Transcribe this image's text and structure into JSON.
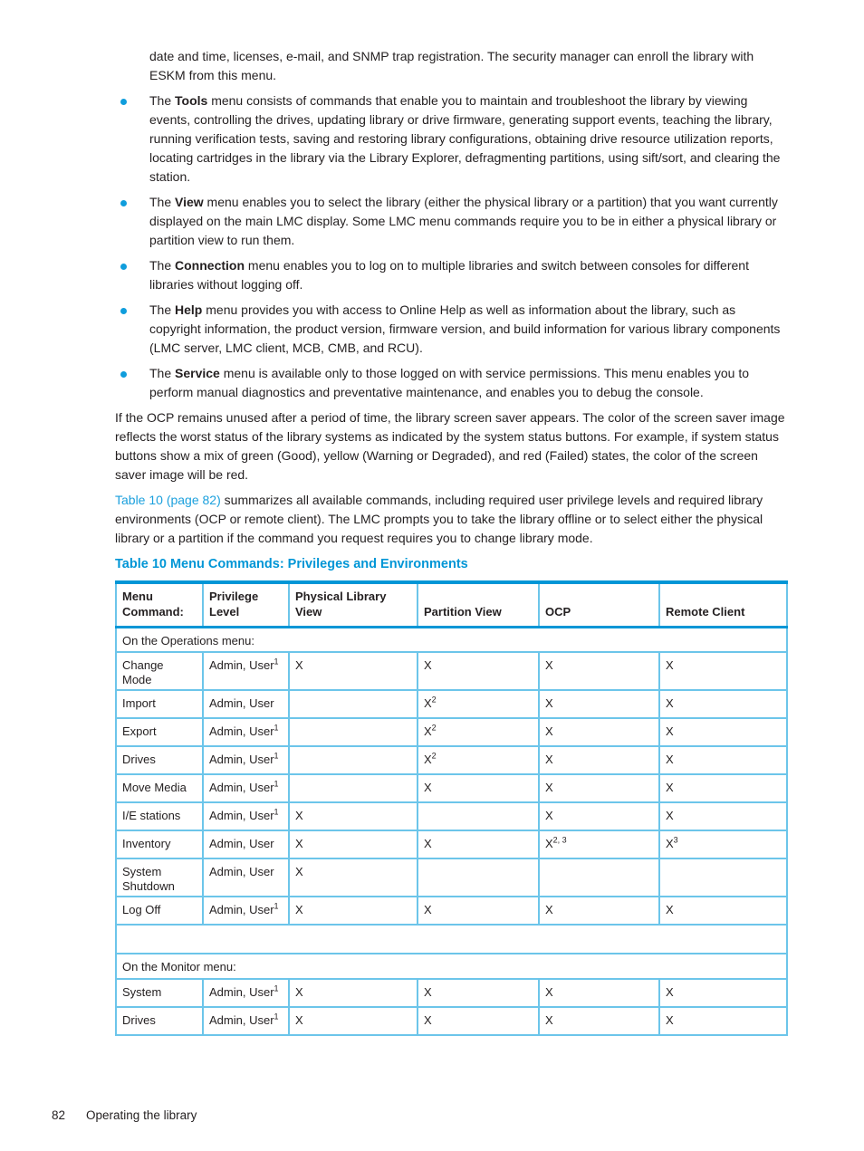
{
  "colors": {
    "accent_blue": "#0096d6",
    "link_blue": "#1ba0dd",
    "table_border_light": "#6cc5ea",
    "body_text": "#231f20"
  },
  "intro_continuation": "date and time, licenses, e-mail, and SNMP trap registration. The security manager can enroll the library with ESKM from this menu.",
  "bullets": [
    {
      "pre": "The ",
      "term": "Tools",
      "post": " menu consists of commands that enable you to maintain and troubleshoot the library by viewing events, controlling the drives, updating library or drive firmware, generating support events, teaching the library, running verification tests, saving and restoring library configurations, obtaining drive resource utilization reports, locating cartridges in the library via the Library Explorer, defragmenting partitions, using sift/sort, and clearing the station."
    },
    {
      "pre": "The ",
      "term": "View",
      "post": " menu enables you to select the library (either the physical library or a partition) that you want currently displayed on the main LMC display. Some LMC menu commands require you to be in either a physical library or partition view to run them."
    },
    {
      "pre": "The ",
      "term": "Connection",
      "post": " menu enables you to log on to multiple libraries and switch between consoles for different libraries without logging off."
    },
    {
      "pre": "The ",
      "term": "Help",
      "post": " menu provides you with access to Online Help as well as information about the library, such as copyright information, the product version, firmware version, and build information for various library components (LMC server, LMC client, MCB, CMB, and RCU)."
    },
    {
      "pre": "The ",
      "term": "Service",
      "post": " menu is available only to those logged on with service permissions. This menu enables you to perform manual diagnostics and preventative maintenance, and enables you to debug the console."
    }
  ],
  "paragraphs": {
    "screen_saver": "If the OCP remains unused after a period of time, the library screen saver appears. The color of the screen saver image reflects the worst status of the library systems as indicated by the system status buttons. For example, if system status buttons show a mix of green (Good), yellow (Warning or Degraded), and red (Failed) states, the color of the screen saver image will be red.",
    "table_intro": {
      "link_text": "Table 10 (page 82)",
      "rest": " summarizes all available commands, including required user privilege levels and required library environments (OCP or remote client). The LMC prompts you to take the library offline or to select either the physical library or a partition if the command you request requires you to change library mode."
    }
  },
  "table": {
    "caption": "Table 10 Menu Commands: Privileges and Environments",
    "columns": [
      "Menu\nCommand:",
      "Privilege Level",
      "Physical Library View",
      "Partition View",
      "OCP",
      "Remote Client"
    ],
    "rows": [
      {
        "type": "section",
        "label": "On the Operations menu:"
      },
      {
        "type": "data",
        "cells": [
          {
            "t": "Change\nMode"
          },
          {
            "t": "Admin, User",
            "sup": "1"
          },
          {
            "t": "X"
          },
          {
            "t": "X"
          },
          {
            "t": "X"
          },
          {
            "t": "X"
          }
        ]
      },
      {
        "type": "data",
        "cells": [
          {
            "t": "Import"
          },
          {
            "t": "Admin, User"
          },
          null,
          {
            "t": "X",
            "sup": "2"
          },
          {
            "t": "X"
          },
          {
            "t": "X"
          }
        ]
      },
      {
        "type": "data",
        "cells": [
          {
            "t": "Export"
          },
          {
            "t": "Admin, User",
            "sup": "1"
          },
          null,
          {
            "t": "X",
            "sup": "2"
          },
          {
            "t": "X"
          },
          {
            "t": "X"
          }
        ]
      },
      {
        "type": "data",
        "cells": [
          {
            "t": "Drives"
          },
          {
            "t": "Admin, User",
            "sup": "1"
          },
          null,
          {
            "t": "X",
            "sup": "2"
          },
          {
            "t": "X"
          },
          {
            "t": "X"
          }
        ]
      },
      {
        "type": "data",
        "cells": [
          {
            "t": "Move Media"
          },
          {
            "t": "Admin, User",
            "sup": "1"
          },
          null,
          {
            "t": "X"
          },
          {
            "t": "X"
          },
          {
            "t": "X"
          }
        ]
      },
      {
        "type": "data",
        "cells": [
          {
            "t": "I/E stations"
          },
          {
            "t": "Admin, User",
            "sup": "1"
          },
          {
            "t": "X"
          },
          null,
          {
            "t": "X"
          },
          {
            "t": "X"
          }
        ]
      },
      {
        "type": "data",
        "cells": [
          {
            "t": "Inventory"
          },
          {
            "t": "Admin, User"
          },
          {
            "t": "X"
          },
          {
            "t": "X"
          },
          {
            "t": "X",
            "sup": "2, 3"
          },
          {
            "t": "X",
            "sup": "3"
          }
        ]
      },
      {
        "type": "data",
        "cells": [
          {
            "t": "System\nShutdown"
          },
          {
            "t": "Admin, User"
          },
          {
            "t": "X"
          },
          null,
          null,
          null
        ]
      },
      {
        "type": "data",
        "cells": [
          {
            "t": "Log Off"
          },
          {
            "t": "Admin, User",
            "sup": "1"
          },
          {
            "t": "X"
          },
          {
            "t": "X"
          },
          {
            "t": "X"
          },
          {
            "t": "X"
          }
        ]
      },
      {
        "type": "empty"
      },
      {
        "type": "section",
        "label": "On the Monitor menu:"
      },
      {
        "type": "data",
        "cells": [
          {
            "t": "System"
          },
          {
            "t": "Admin, User",
            "sup": "1"
          },
          {
            "t": "X"
          },
          {
            "t": "X"
          },
          {
            "t": "X"
          },
          {
            "t": "X"
          }
        ]
      },
      {
        "type": "data",
        "cells": [
          {
            "t": "Drives"
          },
          {
            "t": "Admin, User",
            "sup": "1"
          },
          {
            "t": "X"
          },
          {
            "t": "X"
          },
          {
            "t": "X"
          },
          {
            "t": "X"
          }
        ]
      }
    ]
  },
  "footer": {
    "page_number": "82",
    "section_title": "Operating the library"
  }
}
